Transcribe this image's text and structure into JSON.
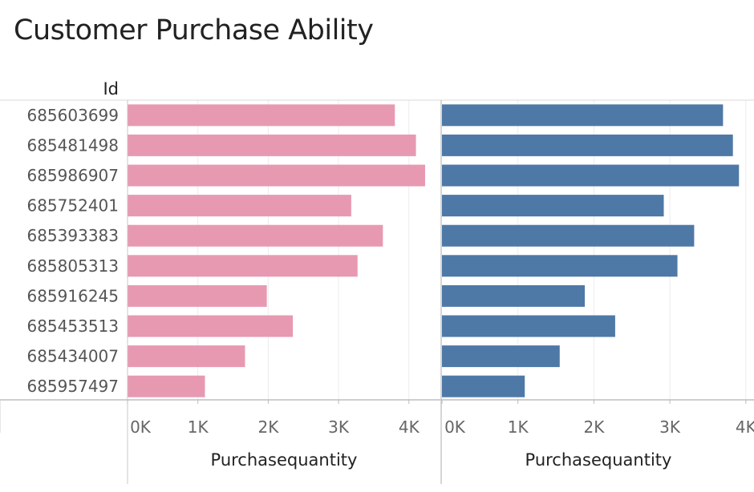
{
  "title": "Customer Purchase Ability",
  "row_header": "Id",
  "colors": {
    "left": "#e899b2",
    "right": "#4e79a7"
  },
  "chart_data": [
    {
      "type": "bar",
      "orientation": "horizontal",
      "categories": [
        "685603699",
        "685481498",
        "685986907",
        "685752401",
        "685393383",
        "685805313",
        "685916245",
        "685453513",
        "685434007",
        "685957497"
      ],
      "values": [
        3800,
        4100,
        4230,
        3180,
        3630,
        3270,
        1980,
        2350,
        1670,
        1100
      ],
      "xlabel": "Purchasequantity",
      "xlim": [
        0,
        4400
      ],
      "xticks": [
        "0K",
        "1K",
        "2K",
        "3K",
        "4K"
      ],
      "grid": true
    },
    {
      "type": "bar",
      "orientation": "horizontal",
      "categories": [
        "685603699",
        "685481498",
        "685986907",
        "685752401",
        "685393383",
        "685805313",
        "685916245",
        "685453513",
        "685434007",
        "685957497"
      ],
      "values": [
        3700,
        3830,
        3910,
        2920,
        3320,
        3100,
        1880,
        2280,
        1550,
        1090
      ],
      "xlabel": "Purchasequantity",
      "xlim": [
        0,
        4000
      ],
      "xticks": [
        "0K",
        "1K",
        "2K",
        "3K",
        "4K"
      ],
      "grid": true
    }
  ]
}
